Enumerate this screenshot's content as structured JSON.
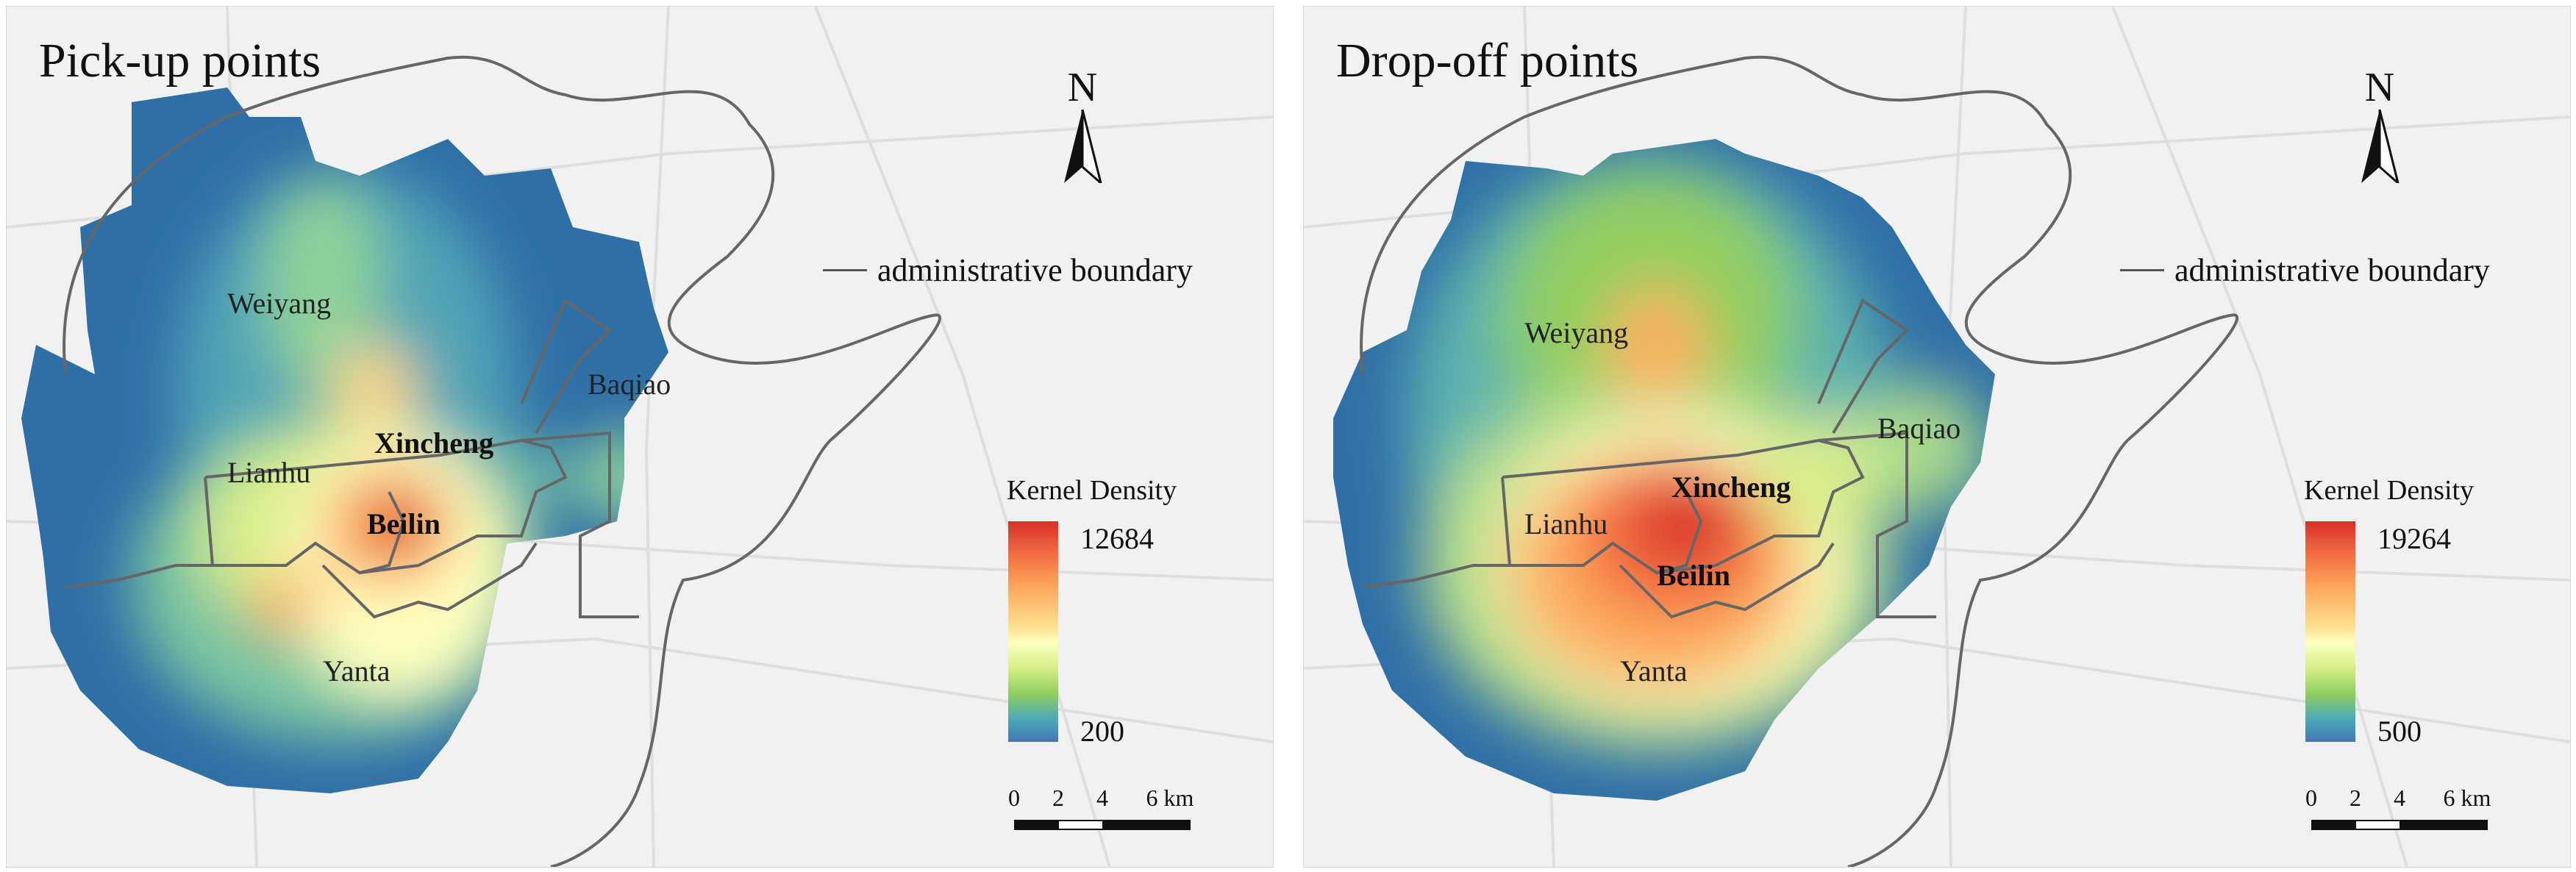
{
  "panels": [
    {
      "title": "Pick-up points",
      "north_label": "N",
      "boundary_legend": "administrative boundary",
      "districts": [
        "Weiyang",
        "Baqiao",
        "Xincheng",
        "Lianhu",
        "Beilin",
        "Yanta"
      ],
      "legend": {
        "title": "Kernel Density",
        "max": "12684",
        "min": "200"
      },
      "scale_bar": {
        "ticks": [
          "0",
          "2",
          "4",
          "6 km"
        ]
      }
    },
    {
      "title": "Drop-off points",
      "north_label": "N",
      "boundary_legend": "administrative boundary",
      "districts": [
        "Weiyang",
        "Baqiao",
        "Xincheng",
        "Lianhu",
        "Beilin",
        "Yanta"
      ],
      "legend": {
        "title": "Kernel Density",
        "max": "19264",
        "min": "500"
      },
      "scale_bar": {
        "ticks": [
          "0",
          "2",
          "4",
          "6 km"
        ]
      }
    }
  ],
  "colors": {
    "background": "#f1f1f1",
    "boundary": "#555555",
    "density_low": "#4575b4",
    "density_mid": "#ffffbf",
    "density_high": "#d73027"
  }
}
